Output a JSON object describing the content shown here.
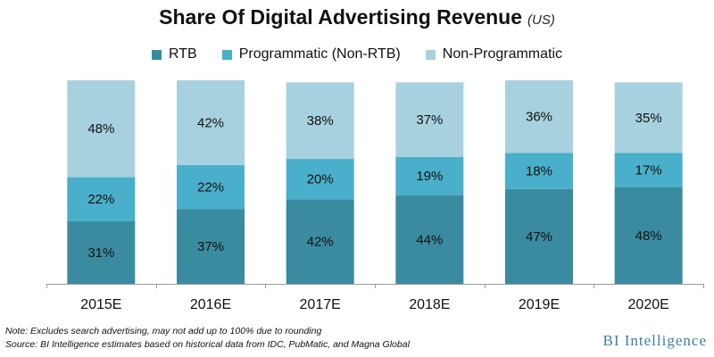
{
  "header": {
    "title": "Share Of Digital Advertising Revenue",
    "title_suffix": "(US)"
  },
  "legend": [
    {
      "label": "RTB",
      "color": "#3a8ba0"
    },
    {
      "label": "Programmatic (Non-RTB)",
      "color": "#4aafca"
    },
    {
      "label": "Non-Programmatic",
      "color": "#a8d1df"
    }
  ],
  "chart_data": {
    "type": "bar",
    "stacked": true,
    "title": "Share Of Digital Advertising Revenue",
    "subtitle": "(US)",
    "categories": [
      "2015E",
      "2016E",
      "2017E",
      "2018E",
      "2019E",
      "2020E"
    ],
    "series": [
      {
        "name": "RTB",
        "color": "#3a8ba0",
        "values": [
          31,
          37,
          42,
          44,
          47,
          48
        ],
        "labels": [
          "31%",
          "37%",
          "42%",
          "44%",
          "47%",
          "48%"
        ]
      },
      {
        "name": "Programmatic (Non-RTB)",
        "color": "#4aafca",
        "values": [
          22,
          22,
          20,
          19,
          18,
          17
        ],
        "labels": [
          "22%",
          "22%",
          "20%",
          "19%",
          "18%",
          "17%"
        ]
      },
      {
        "name": "Non-Programmatic",
        "color": "#a8d1df",
        "values": [
          48,
          42,
          38,
          37,
          36,
          35
        ],
        "labels": [
          "48%",
          "42%",
          "38%",
          "37%",
          "36%",
          "35%"
        ]
      }
    ],
    "ylim": [
      0,
      101
    ],
    "grid": false,
    "legend_position": "top"
  },
  "footer": {
    "note": "Note: Excludes search advertising, may not add up to 100% due to rounding",
    "source": "Source: BI Intelligence estimates based on historical data from IDC, PubMatic, and Magna Global",
    "brand": "BI Intelligence"
  }
}
